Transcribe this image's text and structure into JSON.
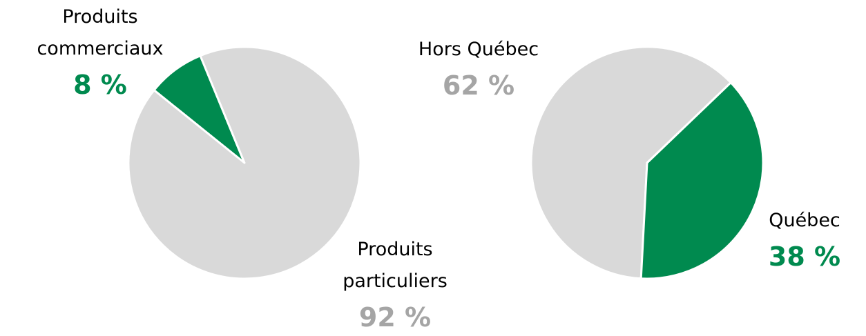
{
  "chart_data": [
    {
      "type": "pie",
      "categories": [
        "Produits commerciaux",
        "Produits particuliers"
      ],
      "values": [
        8,
        92
      ],
      "value_labels": [
        "8 %",
        "92 %"
      ],
      "colors": [
        "#008a4f",
        "#d9d9d9"
      ],
      "label_colors": [
        "#008a4f",
        "#a5a5a5"
      ]
    },
    {
      "type": "pie",
      "categories": [
        "Hors Québec",
        "Québec"
      ],
      "values": [
        62,
        38
      ],
      "value_labels": [
        "62 %",
        "38 %"
      ],
      "colors": [
        "#d9d9d9",
        "#008a4f"
      ],
      "label_colors": [
        "#a5a5a5",
        "#008a4f"
      ]
    }
  ]
}
